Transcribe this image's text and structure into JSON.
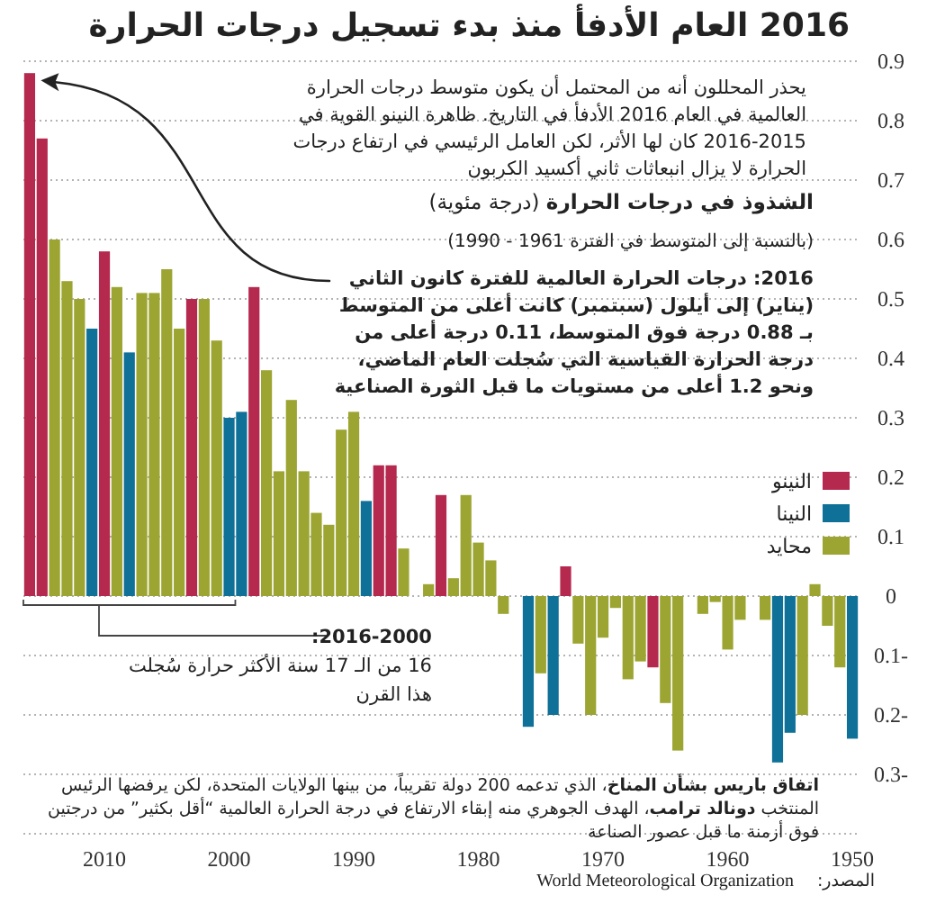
{
  "chart_data": {
    "type": "bar",
    "title": "2016 العام الأدفأ منذ بدء تسجيل درجات الحرارة",
    "subtitle": "يحذر المحللون أنه من المحتمل أن يكون متوسط درجات الحرارة العالمية في العام 2016 الأدفأ في التاريخ. ظاهرة النينو القوية في 2015-2016 كان لها الأثر، لكن العامل الرئيسي في ارتفاع درجات الحرارة لا يزال انبعاثات ثاني أكسيد الكربون",
    "ylabel": "**الشذوذ في درجات الحرارة** (درجة مئوية)",
    "annotations": [
      "(بالنسبة إلى المتوسط في الفترة 1961 - 1990)",
      "2016: درجات الحرارة العالمية للفترة كانون الثاني (يناير) إلى أيلول (سبتمبر) كانت أعلى من المتوسط بـ 0.88 درجة فوق المتوسط، 0.11 درجة أعلى من درجة الحرارة القياسية التي سُجلت العام الماضي، ونحو 1.2 أعلى من مستويات ما قبل الثورة الصناعية",
      "**2016-2000:** 16 من الـ 17 سنة الأكثر حرارة سُجلت هذا القرن",
      "**اتفاق باريس بشأن المناخ**، الذي تدعمه 200 دولة تقريباً، من بينها الولايات المتحدة، لكن يرفضها الرئيس المنتخب **دونالد ترامب**، الهدف الجوهري منه إبقاء الارتفاع في درجة الحرارة العالمية “أقل بكثير” من درجتين فوق أزمنة ما قبل عصور الصناعة",
      "المصدر:",
      "World Meteorological Organization"
    ],
    "categories": [
      null,
      null,
      null,
      null,
      null,
      null,
      "2010",
      null,
      null,
      null,
      null,
      null,
      null,
      null,
      null,
      null,
      "2000",
      null,
      null,
      null,
      null,
      null,
      null,
      null,
      null,
      null,
      "1990",
      null,
      null,
      null,
      null,
      null,
      null,
      null,
      null,
      null,
      "1980",
      null,
      null,
      null,
      null,
      null,
      null,
      null,
      null,
      null,
      "1970",
      null,
      null,
      null,
      null,
      null,
      null,
      null,
      null,
      null,
      "1960",
      null,
      null,
      null,
      null,
      null,
      null,
      null,
      null,
      null,
      "1950"
    ],
    "series": [
      {
        "name": "النينو",
        "color": "#b5294e",
        "values": [
          0.88,
          0.77,
          null,
          null,
          null,
          null,
          0.58,
          null,
          null,
          null,
          null,
          null,
          null,
          0.5,
          null,
          null,
          null,
          null,
          0.52,
          null,
          null,
          null,
          null,
          null,
          null,
          null,
          null,
          null,
          0.22,
          0.22,
          null,
          null,
          null,
          0.17,
          null,
          null,
          null,
          null,
          null,
          null,
          null,
          null,
          null,
          0.05,
          null,
          null,
          null,
          null,
          null,
          null,
          -0.12,
          null,
          null,
          null,
          null,
          null,
          null,
          null,
          null,
          null,
          null,
          null,
          null,
          null,
          null,
          null,
          null
        ]
      },
      {
        "name": "النينا",
        "color": "#0f7098",
        "values": [
          null,
          null,
          null,
          null,
          null,
          0.45,
          null,
          null,
          0.41,
          null,
          null,
          null,
          null,
          null,
          null,
          null,
          0.3,
          0.31,
          null,
          null,
          null,
          null,
          null,
          null,
          null,
          null,
          null,
          0.16,
          null,
          null,
          null,
          null,
          null,
          null,
          null,
          null,
          null,
          null,
          null,
          null,
          -0.22,
          null,
          -0.2,
          null,
          null,
          null,
          null,
          null,
          null,
          null,
          null,
          null,
          null,
          null,
          null,
          null,
          null,
          null,
          null,
          null,
          -0.28,
          -0.23,
          null,
          null,
          null,
          null,
          -0.24
        ]
      },
      {
        "name": "محايد",
        "color": "#9ca531",
        "values": [
          null,
          null,
          0.6,
          0.53,
          0.5,
          null,
          null,
          0.52,
          null,
          0.51,
          0.51,
          0.55,
          0.45,
          null,
          0.5,
          0.43,
          null,
          null,
          null,
          0.38,
          0.21,
          0.33,
          0.21,
          0.14,
          0.12,
          0.28,
          0.31,
          null,
          null,
          null,
          0.08,
          0.0,
          0.02,
          null,
          0.03,
          0.17,
          0.09,
          0.06,
          -0.03,
          0.0,
          null,
          -0.13,
          null,
          null,
          -0.08,
          -0.2,
          -0.07,
          -0.02,
          -0.14,
          -0.11,
          null,
          -0.18,
          -0.26,
          0.0,
          -0.03,
          -0.01,
          -0.09,
          -0.04,
          0.0,
          -0.04,
          null,
          null,
          -0.2,
          0.02,
          -0.05,
          -0.12,
          null
        ]
      }
    ],
    "ylim": [
      -0.4,
      0.9
    ],
    "yticks": [
      {
        "value": -0.3,
        "label": "0.3-"
      },
      {
        "value": -0.2,
        "label": "0.2-"
      },
      {
        "value": -0.1,
        "label": "0.1-"
      },
      0,
      0.1,
      0.2,
      0.3,
      0.4,
      0.5,
      0.6,
      0.7,
      0.8,
      0.9
    ],
    "grid": "y",
    "legend": "right"
  }
}
